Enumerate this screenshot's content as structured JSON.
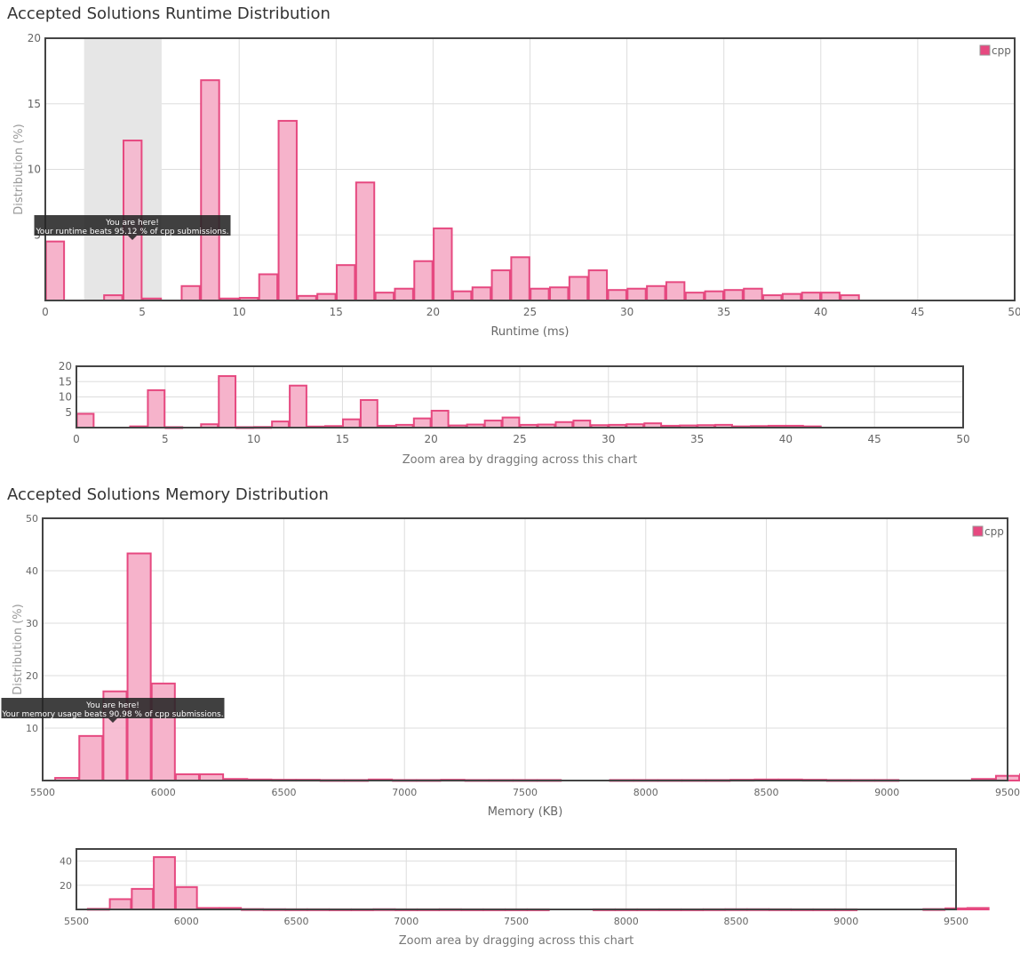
{
  "runtime": {
    "title": "Accepted Solutions Runtime Distribution",
    "tooltip": {
      "line1": "You are here!",
      "line2": "Your runtime beats 95.12 % of cpp submissions."
    },
    "zoom_caption": "Zoom area by dragging across this chart"
  },
  "memory": {
    "title": "Accepted Solutions Memory Distribution",
    "tooltip": {
      "line1": "You are here!",
      "line2": "Your memory usage beats 90.98 % of cpp submissions."
    },
    "zoom_caption": "Zoom area by dragging across this chart"
  },
  "chart_data": [
    {
      "type": "bar",
      "id": "runtime-main",
      "title": "Accepted Solutions Runtime Distribution",
      "xlabel": "Runtime (ms)",
      "ylabel": "Distribution (%)",
      "xlim": [
        0,
        50
      ],
      "ylim": [
        0,
        20
      ],
      "xticks": [
        0,
        5,
        10,
        15,
        20,
        25,
        30,
        35,
        40,
        45,
        50
      ],
      "yticks": [
        5,
        10,
        15,
        20
      ],
      "bin_width": 1,
      "x": [
        0,
        3,
        4,
        5,
        7,
        8,
        9,
        10,
        11,
        12,
        13,
        14,
        15,
        16,
        17,
        18,
        19,
        20,
        21,
        22,
        23,
        24,
        25,
        26,
        27,
        28,
        29,
        30,
        31,
        32,
        33,
        34,
        35,
        36,
        37,
        38,
        39,
        40,
        41
      ],
      "values": [
        4.5,
        0.4,
        12.2,
        0.15,
        1.1,
        16.8,
        0.15,
        0.2,
        2.0,
        13.7,
        0.35,
        0.5,
        2.7,
        9.0,
        0.6,
        0.9,
        3.0,
        5.5,
        0.7,
        1.0,
        2.3,
        3.3,
        0.9,
        1.0,
        1.8,
        2.3,
        0.8,
        0.9,
        1.1,
        1.4,
        0.6,
        0.7,
        0.8,
        0.9,
        0.4,
        0.5,
        0.6,
        0.6,
        0.4
      ],
      "highlight_range": [
        2,
        6
      ],
      "highlight_x": 4,
      "legend": [
        "cpp"
      ],
      "legend_position": "top-right",
      "color": "#f6b3cb",
      "edge_color": "#e64980"
    },
    {
      "type": "bar",
      "id": "runtime-navigator",
      "xlabel": "Zoom area by dragging across this chart",
      "xlim": [
        0,
        50
      ],
      "ylim": [
        0,
        20
      ],
      "xticks": [
        0,
        5,
        10,
        15,
        20,
        25,
        30,
        35,
        40,
        45,
        50
      ],
      "yticks": [
        5,
        10,
        15,
        20
      ],
      "bin_width": 1,
      "series_ref": "runtime-main"
    },
    {
      "type": "bar",
      "id": "memory-main",
      "title": "Accepted Solutions Memory Distribution",
      "xlabel": "Memory (KB)",
      "ylabel": "Distribution (%)",
      "xlim": [
        5500,
        9500
      ],
      "ylim": [
        0,
        50
      ],
      "xticks": [
        5500,
        6000,
        6500,
        7000,
        7500,
        8000,
        8500,
        9000,
        9500
      ],
      "yticks": [
        10,
        20,
        30,
        40,
        50
      ],
      "bin_width": 100,
      "x": [
        5550,
        5650,
        5750,
        5850,
        5950,
        6050,
        6150,
        6250,
        6350,
        6450,
        6550,
        6650,
        6750,
        6850,
        6950,
        7050,
        7150,
        7250,
        7350,
        7450,
        7550,
        7850,
        7950,
        8050,
        8150,
        8250,
        8350,
        8450,
        8550,
        8650,
        8750,
        8850,
        8950,
        9350,
        9450,
        9550
      ],
      "values": [
        0.5,
        8.5,
        17.0,
        43.3,
        18.5,
        1.2,
        1.2,
        0.3,
        0.2,
        0.15,
        0.15,
        0.1,
        0.1,
        0.2,
        0.1,
        0.1,
        0.15,
        0.1,
        0.1,
        0.1,
        0.1,
        0.1,
        0.1,
        0.1,
        0.1,
        0.1,
        0.15,
        0.2,
        0.2,
        0.15,
        0.1,
        0.1,
        0.1,
        0.3,
        0.9,
        1.2
      ],
      "highlight_x": 5750,
      "legend": [
        "cpp"
      ],
      "legend_position": "top-right",
      "color": "#f6b3cb",
      "edge_color": "#e64980"
    },
    {
      "type": "bar",
      "id": "memory-navigator",
      "xlabel": "Zoom area by dragging across this chart",
      "xlim": [
        5500,
        9500
      ],
      "ylim": [
        0,
        50
      ],
      "xticks": [
        5500,
        6000,
        6500,
        7000,
        7500,
        8000,
        8500,
        9000,
        9500
      ],
      "yticks": [
        20,
        40
      ],
      "bin_width": 100,
      "series_ref": "memory-main"
    }
  ]
}
